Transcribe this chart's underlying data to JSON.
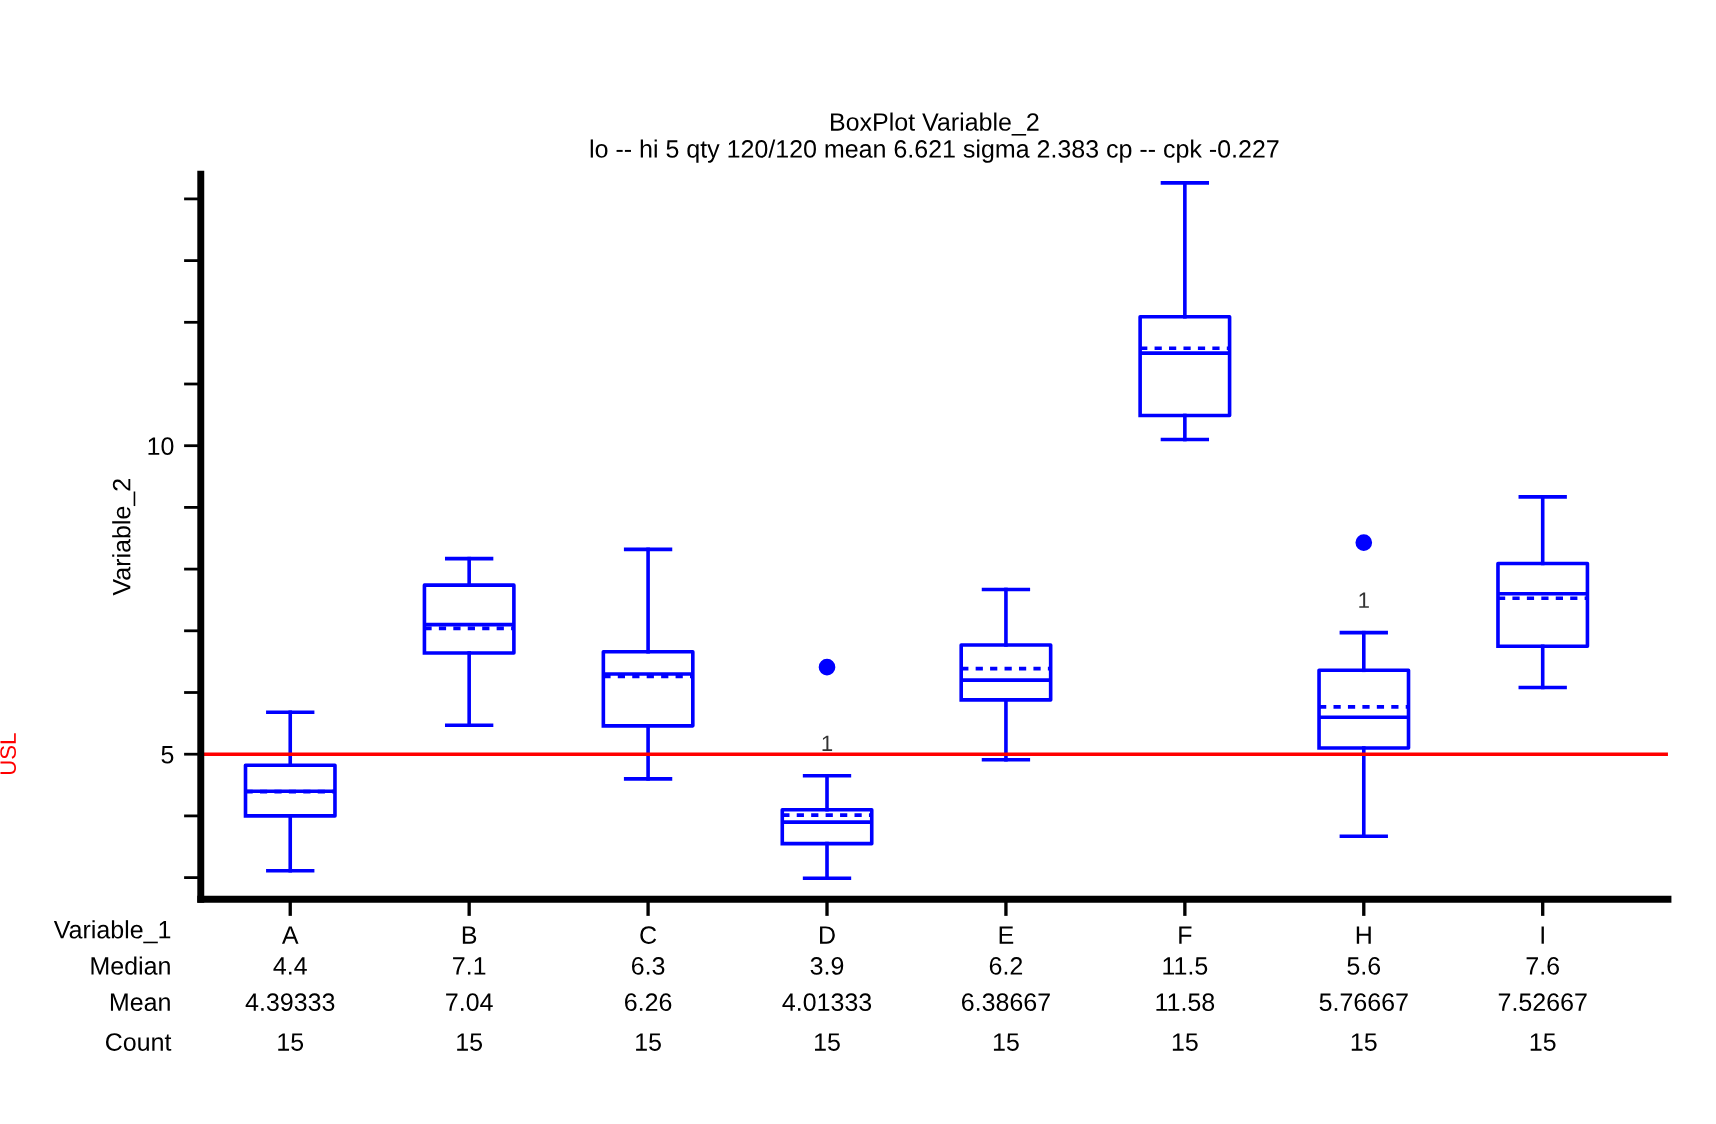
{
  "chart_data": {
    "type": "box",
    "title": "BoxPlot Variable_2",
    "subtitle": "lo -- hi 5 qty 120/120 mean 6.621 sigma 2.383 cp -- cpk -0.227",
    "xlabel": "Variable_1",
    "ylabel": "Variable_2",
    "categories": [
      "A",
      "B",
      "C",
      "D",
      "E",
      "F",
      "H",
      "I"
    ],
    "series": [
      {
        "color": "#0000ff",
        "boxes": [
          {
            "low": 3.11,
            "q1": 4.0,
            "median": 4.4,
            "q3": 4.82,
            "high": 5.68,
            "mean": 4.39333
          },
          {
            "low": 5.47,
            "q1": 6.64,
            "median": 7.1,
            "q3": 7.74,
            "high": 8.17,
            "mean": 7.04
          },
          {
            "low": 4.6,
            "q1": 5.46,
            "median": 6.3,
            "q3": 6.66,
            "high": 8.32,
            "mean": 6.26
          },
          {
            "low": 2.99,
            "q1": 3.55,
            "median": 3.9,
            "q3": 4.1,
            "high": 4.65,
            "mean": 4.01333,
            "outliers": [
              6.41
            ]
          },
          {
            "low": 4.91,
            "q1": 5.88,
            "median": 6.2,
            "q3": 6.77,
            "high": 7.67,
            "mean": 6.38667
          },
          {
            "low": 10.1,
            "q1": 10.49,
            "median": 11.5,
            "q3": 12.09,
            "high": 14.26,
            "mean": 11.58
          },
          {
            "low": 3.67,
            "q1": 5.1,
            "median": 5.6,
            "q3": 6.36,
            "high": 6.97,
            "mean": 5.76667,
            "outliers": [
              8.43
            ]
          },
          {
            "low": 6.08,
            "q1": 6.75,
            "median": 7.6,
            "q3": 8.09,
            "high": 9.17,
            "mean": 7.52667
          }
        ]
      }
    ],
    "ylim": [
      2.65,
      14.4
    ],
    "yticks": [
      {
        "value": 3,
        "label": null
      },
      {
        "value": 4,
        "label": null
      },
      5,
      {
        "value": 6,
        "label": null
      },
      {
        "value": 7,
        "label": null
      },
      {
        "value": 8,
        "label": null
      },
      {
        "value": 9,
        "label": null
      },
      10,
      {
        "value": 11,
        "label": null
      },
      {
        "value": 12,
        "label": null
      },
      {
        "value": 13,
        "label": null
      },
      {
        "value": 14,
        "label": null
      }
    ],
    "ref_lines": [
      {
        "axis": "y",
        "value": 5,
        "label": "USL",
        "color": "#ff0000"
      }
    ],
    "annotations": [
      "1",
      "1",
      "Median",
      "Mean",
      "Count",
      "4.4",
      "7.1",
      "6.3",
      "3.9",
      "6.2",
      "11.5",
      "5.6",
      "7.6",
      "4.39333",
      "7.04",
      "6.26",
      "4.01333",
      "6.38667",
      "11.58",
      "5.76667",
      "7.52667",
      "15",
      "15",
      "15",
      "15",
      "15",
      "15",
      "15",
      "15"
    ],
    "grid": false
  }
}
